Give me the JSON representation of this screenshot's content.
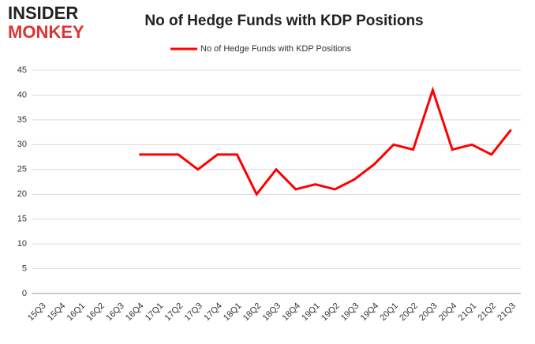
{
  "logo": {
    "line1": "INSIDER",
    "line2": "MONKEY"
  },
  "chart_data": {
    "type": "line",
    "title": "No of Hedge Funds with KDP Positions",
    "categories": [
      "15Q3",
      "15Q4",
      "16Q1",
      "16Q2",
      "16Q3",
      "16Q4",
      "17Q1",
      "17Q2",
      "17Q3",
      "17Q4",
      "18Q1",
      "18Q2",
      "18Q3",
      "18Q4",
      "19Q1",
      "19Q2",
      "19Q3",
      "19Q4",
      "20Q1",
      "20Q2",
      "20Q3",
      "20Q4",
      "21Q1",
      "21Q2",
      "21Q3"
    ],
    "series": [
      {
        "name": "No of Hedge Funds with KDP Positions",
        "color": "#ff0000",
        "values": [
          null,
          null,
          null,
          null,
          null,
          28,
          28,
          28,
          25,
          28,
          28,
          20,
          25,
          21,
          22,
          21,
          23,
          26,
          30,
          29,
          41,
          29,
          30,
          28,
          33
        ]
      }
    ],
    "ylim": [
      0,
      45
    ],
    "yticks": [
      0,
      5,
      10,
      15,
      20,
      25,
      30,
      35,
      40,
      45
    ],
    "grid": true,
    "legend": "top"
  }
}
